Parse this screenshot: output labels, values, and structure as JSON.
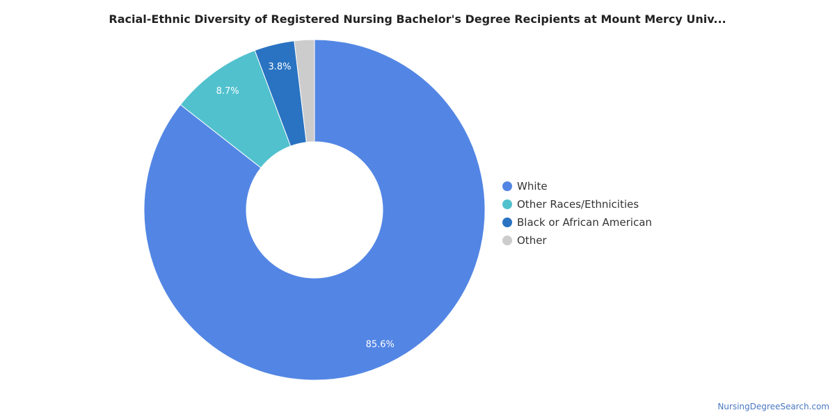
{
  "chart_data": {
    "type": "pie",
    "title": "Racial-Ethnic Diversity of Registered Nursing Bachelor's Degree Recipients at Mount Mercy Univ...",
    "legend_position": "right",
    "slices": [
      {
        "name": "White",
        "value": 85.6,
        "label": "85.6%",
        "color": "#5386E4",
        "label_color": "#ffffff"
      },
      {
        "name": "Other Races/Ethnicities",
        "value": 8.7,
        "label": "8.7%",
        "color": "#51C1CE",
        "label_color": "#ffffff"
      },
      {
        "name": "Black or African American",
        "value": 3.8,
        "label": "3.8%",
        "color": "#2A73C2",
        "label_color": "#ffffff"
      },
      {
        "name": "Other",
        "value": 1.9,
        "label": "",
        "color": "#CCCCCC",
        "label_color": "#ffffff"
      }
    ]
  },
  "watermark": "NursingDegreeSearch.com"
}
